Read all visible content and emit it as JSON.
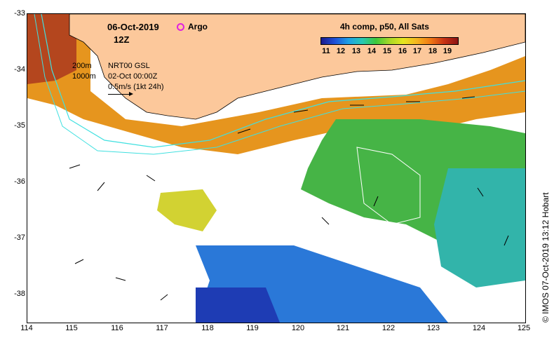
{
  "header": {
    "date": "06-Oct-2019",
    "time": "12Z",
    "argo_label": "Argo"
  },
  "legend": {
    "depth_200": "200m",
    "depth_1000": "1000m",
    "source_line1": "NRT00 GSL",
    "source_line2": "02-Oct 00:00Z",
    "velocity_scale": "0.5m/s (1kt 24h)"
  },
  "colorbar": {
    "title": "4h comp, p50, All Sats",
    "ticks": [
      "11",
      "12",
      "13",
      "14",
      "15",
      "16",
      "17",
      "18",
      "19"
    ],
    "colors": [
      "#1a1a8c",
      "#1e50d8",
      "#1ea0e6",
      "#28c8b4",
      "#3cc83c",
      "#a8d828",
      "#e6e61e",
      "#f5b41e",
      "#f07814",
      "#c83214",
      "#8c1414"
    ]
  },
  "axes": {
    "lat_ticks": [
      "-33",
      "-34",
      "-35",
      "-36",
      "-37",
      "-38"
    ],
    "lon_ticks": [
      "114",
      "115",
      "116",
      "117",
      "118",
      "119",
      "120",
      "121",
      "122",
      "123",
      "124",
      "125"
    ],
    "lat_range": [
      -33,
      -38.5
    ],
    "lon_range": [
      114,
      125
    ]
  },
  "credit": "© IMOS 07-Oct-2019 13:12 Hobart",
  "colors": {
    "land": "#fcc89b",
    "no_data": "#ffffff",
    "argo_marker": "#e020e0",
    "isobath": "#40e0e0"
  }
}
